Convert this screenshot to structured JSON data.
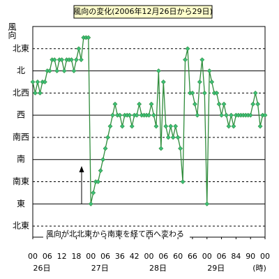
{
  "chart_data": {
    "type": "line",
    "title": "風向の変化(2006年12月26日から29日)",
    "y_label": "風向",
    "annotation": "風向が北北東から南東を経て西へ変わる",
    "x_unit": "(時)",
    "day_labels": [
      "26日",
      "27日",
      "28日",
      "29日"
    ],
    "x": [
      0,
      1,
      2,
      3,
      4,
      5,
      6,
      7,
      8,
      9,
      10,
      11,
      12,
      13,
      14,
      15,
      16,
      17,
      18,
      19,
      20,
      21,
      22,
      23,
      24,
      25,
      26,
      27,
      28,
      29,
      30,
      31,
      32,
      33,
      34,
      35,
      36,
      37,
      38,
      39,
      40,
      41,
      42,
      43,
      44,
      45,
      46,
      47,
      48,
      49,
      50,
      51,
      52,
      53,
      54,
      55,
      56,
      57,
      58,
      59,
      60,
      61,
      62,
      63,
      64,
      65,
      66,
      67,
      68,
      69,
      70,
      71,
      72,
      73,
      74,
      75,
      76,
      77,
      78,
      79,
      80,
      81,
      82,
      83,
      84,
      85,
      86,
      87,
      88,
      89,
      90,
      91,
      92,
      93,
      94,
      95,
      96
    ],
    "series": [
      {
        "color": "#2e8b3a",
        "marker_color": "#3cbf78",
        "values": [
          337.5,
          315,
          337.5,
          315,
          337.5,
          337.5,
          360,
          360,
          382.5,
          382.5,
          360,
          382.5,
          382.5,
          360,
          382.5,
          382.5,
          382.5,
          360,
          382.5,
          405,
          382.5,
          427.5,
          427.5,
          427.5,
          90,
          112.5,
          135,
          135,
          157.5,
          180,
          202.5,
          225,
          247.5,
          270,
          292.5,
          270,
          270,
          247.5,
          270,
          270,
          270,
          247.5,
          270,
          270,
          292.5,
          270,
          270,
          270,
          270,
          292.5,
          270,
          247.5,
          360,
          202.5,
          337.5,
          247.5,
          225,
          247.5,
          225,
          247.5,
          225,
          202.5,
          135,
          382.5,
          405,
          315,
          315,
          292.5,
          270,
          337.5,
          382.5,
          315,
          90,
          360,
          337.5,
          315,
          315,
          292.5,
          270,
          292.5,
          270,
          247.5,
          270,
          247.5,
          270,
          270,
          270,
          270,
          270,
          270,
          270,
          292.5,
          315,
          292.5,
          247.5,
          270,
          270
        ]
      }
    ],
    "xlim": [
      0,
      96
    ],
    "xticks": [
      {
        "value": 0,
        "label": "00"
      },
      {
        "value": 6,
        "label": "06"
      },
      12,
      18,
      {
        "value": 24,
        "label": "00"
      },
      {
        "value": 30,
        "label": "06"
      },
      36,
      42,
      {
        "value": 48,
        "label": "00"
      },
      {
        "value": 54,
        "label": "06"
      },
      60,
      66,
      {
        "value": 72,
        "label": "00"
      },
      {
        "value": 78,
        "label": "06"
      },
      84,
      90,
      {
        "value": 96,
        "label": "00"
      }
    ],
    "ylim": [
      22.5,
      450
    ],
    "yticks": [
      {
        "value": 45,
        "label": "北東"
      },
      {
        "value": 90,
        "label": "東"
      },
      {
        "value": 135,
        "label": "南東"
      },
      {
        "value": 180,
        "label": "南"
      },
      {
        "value": 225,
        "label": "南西"
      },
      {
        "value": 270,
        "label": "西"
      },
      {
        "value": 315,
        "label": "北西"
      },
      {
        "value": 360,
        "label": "北"
      },
      {
        "value": 405,
        "label": "北東"
      }
    ],
    "grid": true
  }
}
